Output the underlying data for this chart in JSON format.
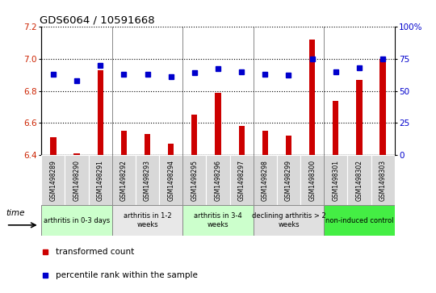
{
  "title": "GDS6064 / 10591668",
  "samples": [
    "GSM1498289",
    "GSM1498290",
    "GSM1498291",
    "GSM1498292",
    "GSM1498293",
    "GSM1498294",
    "GSM1498295",
    "GSM1498296",
    "GSM1498297",
    "GSM1498298",
    "GSM1498299",
    "GSM1498300",
    "GSM1498301",
    "GSM1498302",
    "GSM1498303"
  ],
  "transformed_count": [
    6.51,
    6.41,
    6.93,
    6.55,
    6.53,
    6.47,
    6.65,
    6.79,
    6.58,
    6.55,
    6.52,
    7.12,
    6.74,
    6.87,
    7.0
  ],
  "percentile_rank": [
    63,
    58,
    70,
    63,
    63,
    61,
    64,
    67,
    65,
    63,
    62,
    75,
    65,
    68,
    75
  ],
  "groups": [
    {
      "label": "arthritis in 0-3 days",
      "start": 0,
      "end": 3,
      "color": "#ccffcc"
    },
    {
      "label": "arthritis in 1-2\nweeks",
      "start": 3,
      "end": 6,
      "color": "#e8e8e8"
    },
    {
      "label": "arthritis in 3-4\nweeks",
      "start": 6,
      "end": 9,
      "color": "#ccffcc"
    },
    {
      "label": "declining arthritis > 2\nweeks",
      "start": 9,
      "end": 12,
      "color": "#e0e0e0"
    },
    {
      "label": "non-induced control",
      "start": 12,
      "end": 15,
      "color": "#44ee44"
    }
  ],
  "ylim_left": [
    6.4,
    7.2
  ],
  "ylim_right": [
    0,
    100
  ],
  "bar_color": "#cc0000",
  "dot_color": "#0000cc",
  "bar_width": 0.25,
  "grid_color": "#000000",
  "legend_items": [
    {
      "label": "transformed count",
      "color": "#cc0000"
    },
    {
      "label": "percentile rank within the sample",
      "color": "#0000cc"
    }
  ],
  "yticks_left": [
    6.4,
    6.6,
    6.8,
    7.0,
    7.2
  ],
  "yticks_right": [
    0,
    25,
    50,
    75,
    100
  ],
  "tick_label_color_left": "#cc2200",
  "tick_label_color_right": "#0000cc",
  "sample_box_color": "#d8d8d8",
  "group_separator_color": "#888888"
}
